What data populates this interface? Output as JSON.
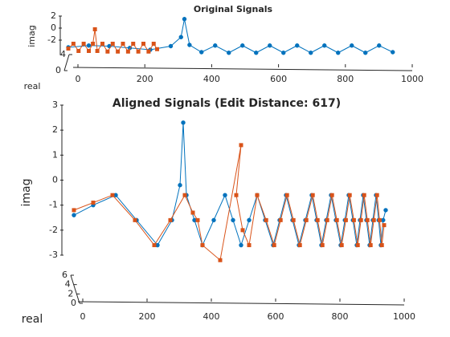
{
  "chart_data": [
    {
      "type": "line",
      "title": "Original Signals",
      "ylabel": "imag",
      "zlabel": "real",
      "xlim": [
        0,
        1000
      ],
      "xticks": [
        0,
        200,
        400,
        600,
        800,
        1000
      ],
      "ylim": [
        -4.5,
        2
      ],
      "yticks": [
        -2,
        0,
        2
      ],
      "zlim": [
        0,
        4
      ],
      "zticks": [
        0,
        4
      ],
      "series": [
        {
          "color": "#0072bd",
          "marker": "circle",
          "x": [
            0,
            60,
            120,
            180,
            240,
            300,
            330,
            340,
            355,
            390,
            430,
            470,
            510,
            550,
            590,
            630,
            670,
            710,
            750,
            790,
            830,
            870,
            910,
            950
          ],
          "values": [
            -3.2,
            -2.9,
            -3.0,
            -3.3,
            -3.6,
            -3.0,
            -1.5,
            1.5,
            -2.8,
            -4.0,
            -2.9,
            -4.1,
            -2.9,
            -4.1,
            -2.9,
            -4.1,
            -2.9,
            -4.1,
            -2.9,
            -4.1,
            -2.9,
            -4.1,
            -2.9,
            -4.0
          ]
        },
        {
          "color": "#d95319",
          "marker": "square",
          "x": [
            0,
            15,
            30,
            45,
            60,
            72,
            78,
            85,
            100,
            115,
            130,
            145,
            160,
            175,
            190,
            205,
            220,
            235,
            250,
            260
          ],
          "values": [
            -3.4,
            -2.6,
            -3.8,
            -2.6,
            -3.8,
            -2.6,
            -0.2,
            -3.8,
            -2.6,
            -3.9,
            -2.6,
            -3.9,
            -2.6,
            -3.9,
            -2.6,
            -3.9,
            -2.6,
            -3.9,
            -2.6,
            -3.5
          ]
        }
      ]
    },
    {
      "type": "line",
      "title": "Aligned Signals (Edit Distance: 617)",
      "ylabel": "imag",
      "zlabel": "real",
      "xlim": [
        0,
        1000
      ],
      "xticks": [
        0,
        200,
        400,
        600,
        800,
        1000
      ],
      "ylim": [
        -3,
        3
      ],
      "yticks": [
        -3,
        -2,
        -1,
        0,
        1,
        2,
        3
      ],
      "zlim": [
        0,
        6
      ],
      "zticks": [
        0,
        2,
        4,
        6
      ],
      "series": [
        {
          "color": "#0072bd",
          "marker": "circle",
          "x": [
            0,
            60,
            130,
            195,
            260,
            305,
            330,
            340,
            350,
            375,
            400,
            435,
            470,
            495,
            520,
            545,
            570,
            595,
            620,
            640,
            660,
            680,
            700,
            720,
            740,
            755,
            770,
            785,
            800,
            815,
            830,
            843,
            855,
            868,
            880,
            890,
            900,
            910,
            920,
            930,
            940,
            948,
            955,
            962,
            970
          ],
          "values": [
            -1.4,
            -1.0,
            -0.6,
            -1.6,
            -2.6,
            -1.6,
            -0.2,
            2.3,
            -0.6,
            -1.6,
            -2.6,
            -1.6,
            -0.6,
            -1.6,
            -2.6,
            -1.6,
            -0.6,
            -1.6,
            -2.6,
            -1.6,
            -0.6,
            -1.6,
            -2.6,
            -1.6,
            -0.6,
            -1.6,
            -2.6,
            -1.6,
            -0.6,
            -1.6,
            -2.6,
            -1.6,
            -0.6,
            -1.6,
            -2.6,
            -1.6,
            -0.6,
            -1.6,
            -2.6,
            -1.6,
            -0.6,
            -1.6,
            -2.6,
            -1.6,
            -1.2
          ]
        },
        {
          "color": "#d95319",
          "marker": "square",
          "x": [
            0,
            60,
            120,
            190,
            250,
            300,
            345,
            370,
            385,
            400,
            455,
            520,
            505,
            525,
            545,
            570,
            598,
            623,
            643,
            663,
            683,
            703,
            723,
            743,
            758,
            773,
            788,
            803,
            818,
            833,
            846,
            858,
            871,
            883,
            893,
            903,
            913,
            923,
            933,
            943,
            951,
            958,
            965
          ],
          "values": [
            -1.2,
            -0.9,
            -0.6,
            -1.6,
            -2.6,
            -1.6,
            -0.6,
            -1.3,
            -1.6,
            -2.6,
            -3.2,
            1.4,
            -0.6,
            -2.0,
            -2.6,
            -0.6,
            -1.6,
            -2.6,
            -1.6,
            -0.6,
            -1.6,
            -2.6,
            -1.6,
            -0.6,
            -1.6,
            -2.6,
            -1.6,
            -0.6,
            -1.6,
            -2.6,
            -1.6,
            -0.6,
            -1.6,
            -2.6,
            -1.6,
            -0.6,
            -1.6,
            -2.6,
            -1.6,
            -0.6,
            -1.6,
            -2.6,
            -1.8
          ]
        }
      ]
    }
  ]
}
